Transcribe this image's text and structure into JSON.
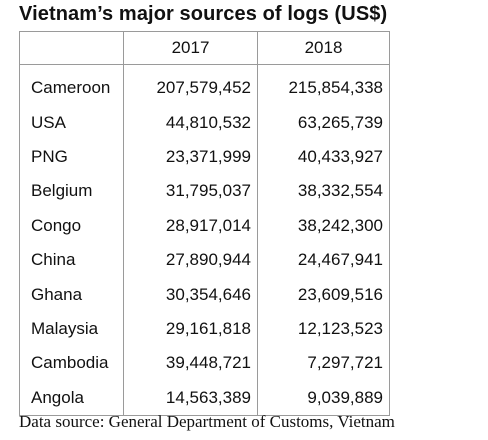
{
  "chart_data": {
    "type": "table",
    "title": "Vietnam’s major sources of logs (US$)",
    "columns": [
      "",
      "2017",
      "2018"
    ],
    "rows": [
      {
        "country": "Cameroon",
        "v2017": "207,579,452",
        "v2018": "215,854,338"
      },
      {
        "country": "USA",
        "v2017": "44,810,532",
        "v2018": "63,265,739"
      },
      {
        "country": "PNG",
        "v2017": "23,371,999",
        "v2018": "40,433,927"
      },
      {
        "country": "Belgium",
        "v2017": "31,795,037",
        "v2018": "38,332,554"
      },
      {
        "country": "Congo",
        "v2017": "28,917,014",
        "v2018": "38,242,300"
      },
      {
        "country": "China",
        "v2017": "27,890,944",
        "v2018": "24,467,941"
      },
      {
        "country": "Ghana",
        "v2017": "30,354,646",
        "v2018": "23,609,516"
      },
      {
        "country": "Malaysia",
        "v2017": "29,161,818",
        "v2018": "12,123,523"
      },
      {
        "country": "Cambodia",
        "v2017": "39,448,721",
        "v2018": "7,297,721"
      },
      {
        "country": "Angola",
        "v2017": "14,563,389",
        "v2018": "9,039,889"
      }
    ],
    "source": "Data source: General Department of Customs, Vietnam"
  }
}
